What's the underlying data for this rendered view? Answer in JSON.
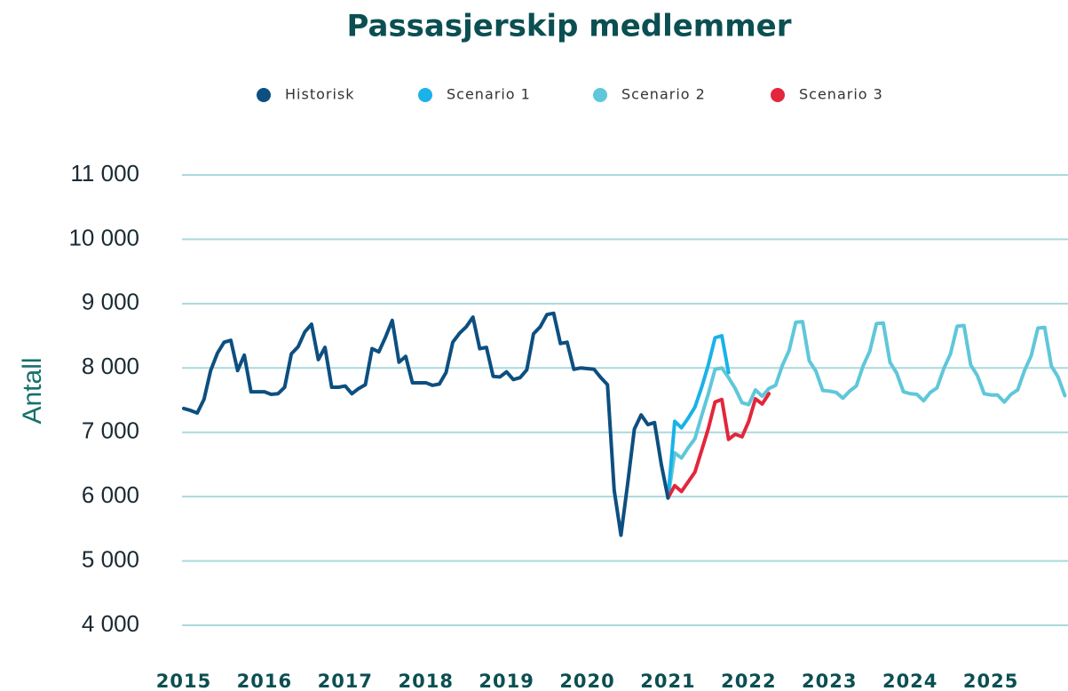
{
  "chart_data": {
    "type": "line",
    "title": "Passasjerskip medlemmer",
    "y_label": "Antall",
    "xlim": [
      2015,
      2026
    ],
    "xticks": [
      2015,
      2016,
      2017,
      2018,
      2019,
      2020,
      2021,
      2022,
      2023,
      2024,
      2025
    ],
    "ylim": [
      4000,
      11000
    ],
    "yticks": [
      {
        "value": 4000,
        "label": "4 000"
      },
      {
        "value": 5000,
        "label": "5 000"
      },
      {
        "value": 6000,
        "label": "6 000"
      },
      {
        "value": 7000,
        "label": "7 000"
      },
      {
        "value": 8000,
        "label": "8 000"
      },
      {
        "value": 9000,
        "label": "9 000"
      },
      {
        "value": 10000,
        "label": "10 000"
      },
      {
        "value": 11000,
        "label": "11 000"
      }
    ],
    "grid": true,
    "legend": "top",
    "series": [
      {
        "name": "Historisk",
        "color": "#0d4f80",
        "x": [
          2015,
          2015.083,
          2015.167,
          2015.25,
          2015.333,
          2015.417,
          2015.5,
          2015.583,
          2015.667,
          2015.75,
          2015.833,
          2015.917,
          2016,
          2016.083,
          2016.167,
          2016.25,
          2016.333,
          2016.417,
          2016.5,
          2016.583,
          2016.667,
          2016.75,
          2016.833,
          2016.917,
          2017,
          2017.083,
          2017.167,
          2017.25,
          2017.333,
          2017.417,
          2017.5,
          2017.583,
          2017.667,
          2017.75,
          2017.833,
          2017.917,
          2018,
          2018.083,
          2018.167,
          2018.25,
          2018.333,
          2018.417,
          2018.5,
          2018.583,
          2018.667,
          2018.75,
          2018.833,
          2018.917,
          2019,
          2019.083,
          2019.167,
          2019.25,
          2019.333,
          2019.417,
          2019.5,
          2019.583,
          2019.667,
          2019.75,
          2019.833,
          2019.917,
          2020,
          2020.083,
          2020.167,
          2020.25,
          2020.333,
          2020.417,
          2020.5,
          2020.583,
          2020.667,
          2020.75,
          2020.833,
          2020.917,
          2021
        ],
        "values": [
          7370,
          7340,
          7300,
          7510,
          7960,
          8230,
          8400,
          8430,
          7960,
          8200,
          7630,
          7630,
          7630,
          7590,
          7600,
          7700,
          8220,
          8330,
          8560,
          8680,
          8130,
          8320,
          7700,
          7700,
          7720,
          7600,
          7680,
          7740,
          8300,
          8250,
          8480,
          8740,
          8090,
          8180,
          7770,
          7770,
          7770,
          7730,
          7750,
          7930,
          8400,
          8540,
          8640,
          8790,
          8300,
          8320,
          7870,
          7860,
          7940,
          7820,
          7850,
          7970,
          8530,
          8640,
          8830,
          8850,
          8380,
          8400,
          7980,
          8000,
          7990,
          7980,
          7850,
          7740,
          6100,
          5400,
          6200,
          7050,
          7270,
          7120,
          7150,
          6500,
          5980
        ]
      },
      {
        "name": "Scenario 1",
        "color": "#1ab2e8",
        "x": [
          2021,
          2021.083,
          2021.167,
          2021.25,
          2021.333,
          2021.417,
          2021.5,
          2021.583,
          2021.667,
          2021.75
        ],
        "values": [
          5980,
          7170,
          7070,
          7220,
          7390,
          7700,
          8050,
          8470,
          8500,
          7930
        ]
      },
      {
        "name": "Scenario 2",
        "color": "#5fc7d9",
        "x": [
          2021,
          2021.083,
          2021.167,
          2021.25,
          2021.333,
          2021.417,
          2021.5,
          2021.583,
          2021.667,
          2021.75,
          2021.833,
          2021.917,
          2022,
          2022.083,
          2022.167,
          2022.25,
          2022.333,
          2022.417,
          2022.5,
          2022.583,
          2022.667,
          2022.75,
          2022.833,
          2022.917,
          2023,
          2023.083,
          2023.167,
          2023.25,
          2023.333,
          2023.417,
          2023.5,
          2023.583,
          2023.667,
          2023.75,
          2023.833,
          2023.917,
          2024,
          2024.083,
          2024.167,
          2024.25,
          2024.333,
          2024.417,
          2024.5,
          2024.583,
          2024.667,
          2024.75,
          2024.833,
          2024.917,
          2025,
          2025.083,
          2025.167,
          2025.25,
          2025.333,
          2025.417,
          2025.5,
          2025.583,
          2025.667,
          2025.75,
          2025.833,
          2025.917
        ],
        "values": [
          5980,
          6680,
          6600,
          6760,
          6900,
          7260,
          7600,
          7980,
          8000,
          7850,
          7680,
          7460,
          7430,
          7660,
          7560,
          7680,
          7730,
          8040,
          8270,
          8710,
          8720,
          8110,
          7950,
          7650,
          7640,
          7620,
          7530,
          7640,
          7720,
          8030,
          8260,
          8690,
          8700,
          8090,
          7920,
          7630,
          7600,
          7590,
          7490,
          7620,
          7690,
          7990,
          8220,
          8650,
          8660,
          8050,
          7880,
          7600,
          7580,
          7580,
          7470,
          7590,
          7660,
          7960,
          8190,
          8620,
          8630,
          8030,
          7860,
          7570
        ]
      },
      {
        "name": "Scenario 3",
        "color": "#e3263b",
        "x": [
          2021,
          2021.083,
          2021.167,
          2021.25,
          2021.333,
          2021.417,
          2021.5,
          2021.583,
          2021.667,
          2021.75,
          2021.833,
          2021.917,
          2022,
          2022.083,
          2022.167,
          2022.25
        ],
        "values": [
          5980,
          6170,
          6080,
          6230,
          6380,
          6720,
          7060,
          7470,
          7510,
          6890,
          6970,
          6930,
          7170,
          7520,
          7440,
          7600
        ]
      }
    ]
  }
}
